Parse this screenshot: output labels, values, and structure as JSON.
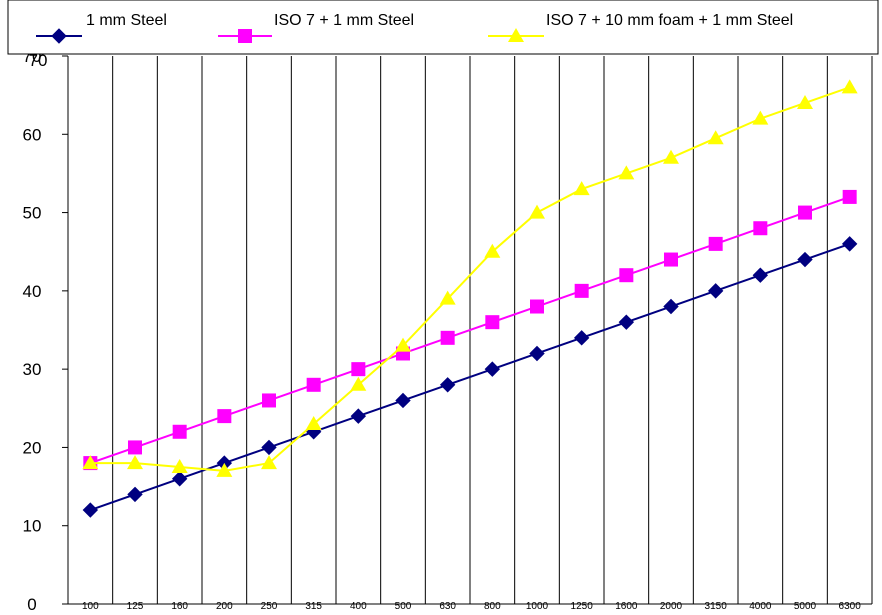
{
  "chart_data": {
    "type": "line",
    "title": "",
    "xlabel": "",
    "ylabel": "",
    "x": [
      "100",
      "125",
      "160",
      "200",
      "250",
      "315",
      "400",
      "500",
      "630",
      "800",
      "1000",
      "1250",
      "1600",
      "2000",
      "3150",
      "4000",
      "5000",
      "6300"
    ],
    "ylim": [
      0,
      70
    ],
    "yticks": [
      "0",
      "10",
      "20",
      "30",
      "40",
      "50",
      "60",
      "70"
    ],
    "grid": "vertical",
    "legend": "top",
    "series": [
      {
        "name": "1 mm Steel",
        "color": "#000080",
        "marker": "diamond",
        "values": [
          12,
          14,
          16,
          18,
          20,
          22,
          24,
          26,
          28,
          30,
          32,
          34,
          36,
          38,
          40,
          42,
          44,
          46
        ]
      },
      {
        "name": "ISO 7 + 1 mm Steel",
        "color": "#FF00FF",
        "marker": "square",
        "values": [
          18,
          20,
          22,
          24,
          26,
          28,
          30,
          32,
          34,
          36,
          38,
          40,
          42,
          44,
          46,
          48,
          50,
          52
        ]
      },
      {
        "name": "ISO 7 + 10 mm foam + 1 mm Steel",
        "color": "#FFFF00",
        "marker": "triangle",
        "values": [
          18,
          18,
          17.5,
          17,
          18,
          23,
          28,
          33,
          39,
          45,
          50,
          53,
          55,
          57,
          59.5,
          62,
          64,
          66
        ]
      }
    ]
  }
}
